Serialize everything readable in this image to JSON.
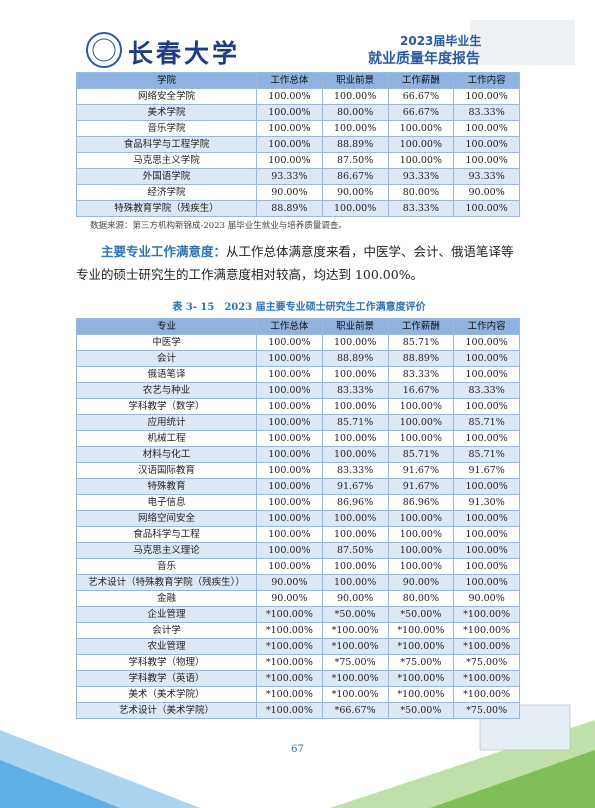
{
  "header": {
    "logo_text": "长春大学",
    "banner_year": "2023届毕业生",
    "banner_title": "就业质量年度报告"
  },
  "table1": {
    "columns": [
      "学院",
      "工作总体",
      "职业前景",
      "工作薪酬",
      "工作内容"
    ],
    "rows": [
      [
        "网络安全学院",
        "100.00%",
        "100.00%",
        "66.67%",
        "100.00%"
      ],
      [
        "美术学院",
        "100.00%",
        "80.00%",
        "66.67%",
        "83.33%"
      ],
      [
        "音乐学院",
        "100.00%",
        "100.00%",
        "100.00%",
        "100.00%"
      ],
      [
        "食品科学与工程学院",
        "100.00%",
        "88.89%",
        "100.00%",
        "100.00%"
      ],
      [
        "马克思主义学院",
        "100.00%",
        "87.50%",
        "100.00%",
        "100.00%"
      ],
      [
        "外国语学院",
        "93.33%",
        "86.67%",
        "93.33%",
        "93.33%"
      ],
      [
        "经济学院",
        "90.00%",
        "90.00%",
        "80.00%",
        "90.00%"
      ],
      [
        "特殊教育学院（残疾生）",
        "88.89%",
        "100.00%",
        "83.33%",
        "100.00%"
      ]
    ],
    "source": "数据来源：第三方机构新锦成-2023 届毕业生就业与培养质量调查。"
  },
  "paragraph": {
    "lead": "主要专业工作满意度：",
    "text": "从工作总体满意度来看，中医学、会计、俄语笔译等专业的硕士研究生的工作满意度相对较高，均达到 100.00%。"
  },
  "table2": {
    "caption": "表 3- 15　2023 届主要专业硕士研究生工作满意度评价",
    "columns": [
      "专业",
      "工作总体",
      "职业前景",
      "工作薪酬",
      "工作内容"
    ],
    "rows": [
      [
        "中医学",
        "100.00%",
        "100.00%",
        "85.71%",
        "100.00%"
      ],
      [
        "会计",
        "100.00%",
        "88.89%",
        "88.89%",
        "100.00%"
      ],
      [
        "俄语笔译",
        "100.00%",
        "100.00%",
        "83.33%",
        "100.00%"
      ],
      [
        "农艺与种业",
        "100.00%",
        "83.33%",
        "16.67%",
        "83.33%"
      ],
      [
        "学科教学（数学）",
        "100.00%",
        "100.00%",
        "100.00%",
        "100.00%"
      ],
      [
        "应用统计",
        "100.00%",
        "85.71%",
        "100.00%",
        "85.71%"
      ],
      [
        "机械工程",
        "100.00%",
        "100.00%",
        "100.00%",
        "100.00%"
      ],
      [
        "材料与化工",
        "100.00%",
        "100.00%",
        "85.71%",
        "85.71%"
      ],
      [
        "汉语国际教育",
        "100.00%",
        "83.33%",
        "91.67%",
        "91.67%"
      ],
      [
        "特殊教育",
        "100.00%",
        "91.67%",
        "91.67%",
        "100.00%"
      ],
      [
        "电子信息",
        "100.00%",
        "86.96%",
        "86.96%",
        "91.30%"
      ],
      [
        "网络空间安全",
        "100.00%",
        "100.00%",
        "100.00%",
        "100.00%"
      ],
      [
        "食品科学与工程",
        "100.00%",
        "100.00%",
        "100.00%",
        "100.00%"
      ],
      [
        "马克思主义理论",
        "100.00%",
        "87.50%",
        "100.00%",
        "100.00%"
      ],
      [
        "音乐",
        "100.00%",
        "100.00%",
        "100.00%",
        "100.00%"
      ],
      [
        "艺术设计（特殊教育学院（残疾生））",
        "90.00%",
        "100.00%",
        "90.00%",
        "100.00%"
      ],
      [
        "金融",
        "90.00%",
        "90.00%",
        "80.00%",
        "90.00%"
      ],
      [
        "企业管理",
        "*100.00%",
        "*50.00%",
        "*50.00%",
        "*100.00%"
      ],
      [
        "会计学",
        "*100.00%",
        "*100.00%",
        "*100.00%",
        "*100.00%"
      ],
      [
        "农业管理",
        "*100.00%",
        "*100.00%",
        "*100.00%",
        "*100.00%"
      ],
      [
        "学科教学（物理）",
        "*100.00%",
        "*75.00%",
        "*75.00%",
        "*75.00%"
      ],
      [
        "学科教学（英语）",
        "*100.00%",
        "*100.00%",
        "*100.00%",
        "*100.00%"
      ],
      [
        "美术（美术学院）",
        "*100.00%",
        "*100.00%",
        "*100.00%",
        "*100.00%"
      ],
      [
        "艺术设计（美术学院）",
        "*100.00%",
        "*66.67%",
        "*50.00%",
        "*75.00%"
      ]
    ]
  },
  "footer": {
    "page_number": "67"
  }
}
